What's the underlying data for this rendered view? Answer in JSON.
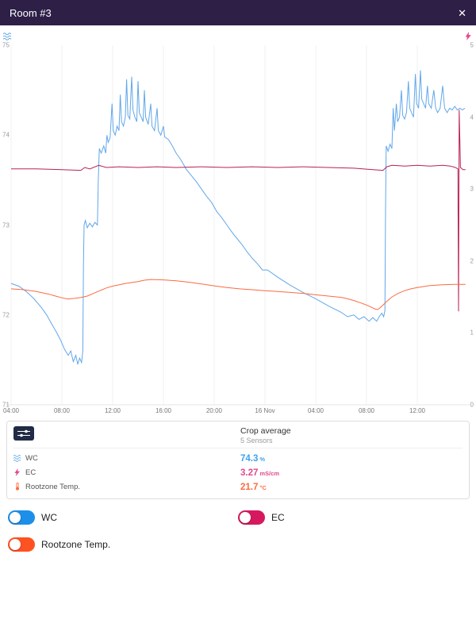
{
  "header": {
    "title": "Room #3",
    "close_label": "✕",
    "bg": "#2e1f47"
  },
  "chart": {
    "left_axis": {
      "ticks": [
        "75",
        "74",
        "73",
        "72",
        "71"
      ],
      "min": 71,
      "max": 75
    },
    "right_axis": {
      "ticks": [
        "5",
        "4",
        "3",
        "2",
        "1",
        "0"
      ],
      "min": 0,
      "max": 5
    }
  },
  "chart_data": {
    "type": "line",
    "title": "",
    "x_unit": "hours from 04:00 15 Nov",
    "grid": "vertical",
    "x_ticks": [
      {
        "t": 0,
        "label": "04:00"
      },
      {
        "t": 4,
        "label": "08:00"
      },
      {
        "t": 8,
        "label": "12:00"
      },
      {
        "t": 12,
        "label": "16:00"
      },
      {
        "t": 16,
        "label": "20:00"
      },
      {
        "t": 20,
        "label": "16 Nov"
      },
      {
        "t": 24,
        "label": "04:00"
      },
      {
        "t": 28,
        "label": "08:00"
      },
      {
        "t": 32,
        "label": "12:00"
      }
    ],
    "series": [
      {
        "name": "WC",
        "unit": "%",
        "axis": "left",
        "min": 71,
        "max": 75,
        "color": "#61a7ea",
        "points": [
          [
            0,
            72.35
          ],
          [
            0.6,
            72.32
          ],
          [
            1.2,
            72.26
          ],
          [
            1.8,
            72.18
          ],
          [
            2.4,
            72.08
          ],
          [
            2.8,
            72.0
          ],
          [
            3.2,
            71.9
          ],
          [
            3.6,
            71.8
          ],
          [
            3.9,
            71.72
          ],
          [
            4.2,
            71.62
          ],
          [
            4.5,
            71.55
          ],
          [
            4.7,
            71.6
          ],
          [
            4.9,
            71.48
          ],
          [
            5.1,
            71.55
          ],
          [
            5.25,
            71.45
          ],
          [
            5.4,
            71.52
          ],
          [
            5.55,
            71.47
          ],
          [
            5.65,
            71.6
          ],
          [
            5.7,
            72.55
          ],
          [
            5.75,
            73.0
          ],
          [
            5.85,
            73.05
          ],
          [
            6.0,
            72.97
          ],
          [
            6.2,
            73.02
          ],
          [
            6.4,
            72.98
          ],
          [
            6.6,
            73.03
          ],
          [
            6.8,
            73.0
          ],
          [
            6.87,
            73.5
          ],
          [
            6.95,
            73.85
          ],
          [
            7.1,
            73.8
          ],
          [
            7.3,
            73.88
          ],
          [
            7.45,
            73.8
          ],
          [
            7.55,
            74.0
          ],
          [
            7.65,
            73.92
          ],
          [
            7.8,
            73.97
          ],
          [
            7.95,
            74.35
          ],
          [
            8.05,
            74.05
          ],
          [
            8.2,
            74.0
          ],
          [
            8.35,
            74.1
          ],
          [
            8.5,
            74.05
          ],
          [
            8.6,
            74.45
          ],
          [
            8.7,
            74.15
          ],
          [
            8.85,
            74.1
          ],
          [
            9.0,
            74.2
          ],
          [
            9.1,
            74.62
          ],
          [
            9.2,
            74.22
          ],
          [
            9.35,
            74.18
          ],
          [
            9.5,
            74.65
          ],
          [
            9.6,
            74.28
          ],
          [
            9.75,
            74.2
          ],
          [
            9.9,
            74.15
          ],
          [
            10.0,
            74.6
          ],
          [
            10.1,
            74.25
          ],
          [
            10.25,
            74.2
          ],
          [
            10.4,
            74.15
          ],
          [
            10.5,
            74.5
          ],
          [
            10.6,
            74.2
          ],
          [
            10.8,
            74.12
          ],
          [
            11.0,
            74.35
          ],
          [
            11.1,
            74.1
          ],
          [
            11.3,
            74.05
          ],
          [
            11.5,
            74.3
          ],
          [
            11.6,
            74.05
          ],
          [
            11.8,
            74.0
          ],
          [
            12.0,
            74.1
          ],
          [
            12.1,
            73.98
          ],
          [
            12.4,
            73.95
          ],
          [
            12.7,
            73.88
          ],
          [
            13.0,
            73.8
          ],
          [
            13.4,
            73.72
          ],
          [
            13.8,
            73.62
          ],
          [
            14.2,
            73.55
          ],
          [
            14.6,
            73.48
          ],
          [
            15.0,
            73.4
          ],
          [
            15.4,
            73.32
          ],
          [
            15.8,
            73.25
          ],
          [
            16.2,
            73.15
          ],
          [
            16.6,
            73.08
          ],
          [
            17.0,
            73.0
          ],
          [
            17.4,
            72.92
          ],
          [
            17.8,
            72.85
          ],
          [
            18.2,
            72.78
          ],
          [
            18.6,
            72.7
          ],
          [
            19.0,
            72.63
          ],
          [
            19.4,
            72.57
          ],
          [
            19.8,
            72.5
          ],
          [
            20.2,
            72.5
          ],
          [
            21,
            72.42
          ],
          [
            22,
            72.33
          ],
          [
            23,
            72.25
          ],
          [
            24,
            72.18
          ],
          [
            25,
            72.1
          ],
          [
            26,
            72.03
          ],
          [
            26.5,
            71.98
          ],
          [
            27,
            72.0
          ],
          [
            27.4,
            71.95
          ],
          [
            27.8,
            71.98
          ],
          [
            28.2,
            71.93
          ],
          [
            28.5,
            71.97
          ],
          [
            28.8,
            71.93
          ],
          [
            29.0,
            71.98
          ],
          [
            29.2,
            72.02
          ],
          [
            29.35,
            71.98
          ],
          [
            29.45,
            72.05
          ],
          [
            29.5,
            73.2
          ],
          [
            29.55,
            73.88
          ],
          [
            29.7,
            73.82
          ],
          [
            29.85,
            73.9
          ],
          [
            30.0,
            73.85
          ],
          [
            30.1,
            74.3
          ],
          [
            30.2,
            74.05
          ],
          [
            30.35,
            74.35
          ],
          [
            30.45,
            74.15
          ],
          [
            30.6,
            74.2
          ],
          [
            30.75,
            74.5
          ],
          [
            30.85,
            74.22
          ],
          [
            31.0,
            74.18
          ],
          [
            31.15,
            74.25
          ],
          [
            31.3,
            74.6
          ],
          [
            31.4,
            74.3
          ],
          [
            31.55,
            74.25
          ],
          [
            31.7,
            74.2
          ],
          [
            31.85,
            74.68
          ],
          [
            31.95,
            74.35
          ],
          [
            32.1,
            74.3
          ],
          [
            32.25,
            74.72
          ],
          [
            32.35,
            74.4
          ],
          [
            32.5,
            74.35
          ],
          [
            32.65,
            74.3
          ],
          [
            32.8,
            74.55
          ],
          [
            32.9,
            74.35
          ],
          [
            33.1,
            74.3
          ],
          [
            33.3,
            74.5
          ],
          [
            33.45,
            74.3
          ],
          [
            33.6,
            74.25
          ],
          [
            33.8,
            74.3
          ],
          [
            34.0,
            74.55
          ],
          [
            34.15,
            74.3
          ],
          [
            34.35,
            74.25
          ],
          [
            34.55,
            74.3
          ],
          [
            34.75,
            74.28
          ],
          [
            34.95,
            74.32
          ],
          [
            35.15,
            74.28
          ],
          [
            35.35,
            74.3
          ],
          [
            35.55,
            74.28
          ],
          [
            35.75,
            74.3
          ]
        ]
      },
      {
        "name": "EC",
        "unit": "mS/cm",
        "axis": "right",
        "min": 0,
        "max": 5,
        "color": "#b92153",
        "points": [
          [
            0,
            3.28
          ],
          [
            2,
            3.28
          ],
          [
            4,
            3.27
          ],
          [
            5.5,
            3.26
          ],
          [
            5.8,
            3.3
          ],
          [
            6.2,
            3.28
          ],
          [
            6.9,
            3.33
          ],
          [
            7.5,
            3.3
          ],
          [
            8.5,
            3.31
          ],
          [
            10,
            3.3
          ],
          [
            11.5,
            3.31
          ],
          [
            13,
            3.3
          ],
          [
            15,
            3.31
          ],
          [
            17,
            3.3
          ],
          [
            19,
            3.31
          ],
          [
            21,
            3.3
          ],
          [
            23,
            3.31
          ],
          [
            25,
            3.3
          ],
          [
            27,
            3.29
          ],
          [
            28.5,
            3.27
          ],
          [
            29.3,
            3.26
          ],
          [
            29.6,
            3.31
          ],
          [
            30,
            3.33
          ],
          [
            31,
            3.32
          ],
          [
            32,
            3.33
          ],
          [
            33,
            3.32
          ],
          [
            34,
            3.33
          ],
          [
            34.6,
            3.32
          ],
          [
            35.0,
            3.3
          ],
          [
            35.2,
            3.28
          ],
          [
            35.25,
            1.3
          ],
          [
            35.3,
            4.1
          ],
          [
            35.4,
            3.3
          ],
          [
            35.6,
            3.27
          ],
          [
            35.8,
            3.27
          ]
        ]
      },
      {
        "name": "Rootzone Temp.",
        "unit": "°C",
        "axis": "hidden",
        "min": 15,
        "max": 35,
        "color": "#fc6a42",
        "points": [
          [
            0,
            21.45
          ],
          [
            1,
            21.4
          ],
          [
            2,
            21.3
          ],
          [
            3,
            21.15
          ],
          [
            3.5,
            21.05
          ],
          [
            4,
            20.95
          ],
          [
            4.5,
            20.88
          ],
          [
            5,
            20.92
          ],
          [
            5.5,
            20.97
          ],
          [
            6,
            21.05
          ],
          [
            6.5,
            21.2
          ],
          [
            7,
            21.35
          ],
          [
            7.5,
            21.5
          ],
          [
            8,
            21.6
          ],
          [
            9,
            21.75
          ],
          [
            10,
            21.85
          ],
          [
            10.5,
            21.93
          ],
          [
            11,
            21.97
          ],
          [
            12,
            21.95
          ],
          [
            13,
            21.9
          ],
          [
            14,
            21.82
          ],
          [
            15,
            21.72
          ],
          [
            16,
            21.62
          ],
          [
            17,
            21.52
          ],
          [
            18,
            21.45
          ],
          [
            19,
            21.4
          ],
          [
            20,
            21.35
          ],
          [
            21,
            21.3
          ],
          [
            22,
            21.25
          ],
          [
            23,
            21.2
          ],
          [
            24,
            21.12
          ],
          [
            25,
            21.05
          ],
          [
            26,
            20.98
          ],
          [
            26.5,
            20.9
          ],
          [
            27,
            20.8
          ],
          [
            27.5,
            20.68
          ],
          [
            28,
            20.55
          ],
          [
            28.4,
            20.42
          ],
          [
            28.7,
            20.32
          ],
          [
            28.9,
            20.3
          ],
          [
            29.1,
            20.42
          ],
          [
            29.4,
            20.62
          ],
          [
            29.7,
            20.82
          ],
          [
            30,
            21.0
          ],
          [
            30.5,
            21.2
          ],
          [
            31,
            21.35
          ],
          [
            31.5,
            21.45
          ],
          [
            32,
            21.52
          ],
          [
            32.5,
            21.58
          ],
          [
            33,
            21.63
          ],
          [
            34,
            21.68
          ],
          [
            35,
            21.7
          ],
          [
            35.8,
            21.7
          ]
        ]
      }
    ]
  },
  "tooltip": {
    "group_title": "Crop average",
    "group_subtitle": "5 Sensors",
    "rows": [
      {
        "label": "WC",
        "value": "74.3",
        "unit": "%",
        "color": "#3fa2ee",
        "icon": "waves"
      },
      {
        "label": "EC",
        "value": "3.27",
        "unit": "mS/cm",
        "color": "#e2498c",
        "icon": "bolt"
      },
      {
        "label": "Rootzone Temp.",
        "value": "21.7",
        "unit": "°C",
        "color": "#ff6a3d",
        "icon": "thermo"
      }
    ]
  },
  "toggles": [
    {
      "label": "WC",
      "color": "#1d8fe8",
      "state": "on"
    },
    {
      "label": "EC",
      "color": "#d6195f",
      "state": "on"
    },
    {
      "label": "Rootzone Temp.",
      "color": "#ff5222",
      "state": "on"
    }
  ]
}
